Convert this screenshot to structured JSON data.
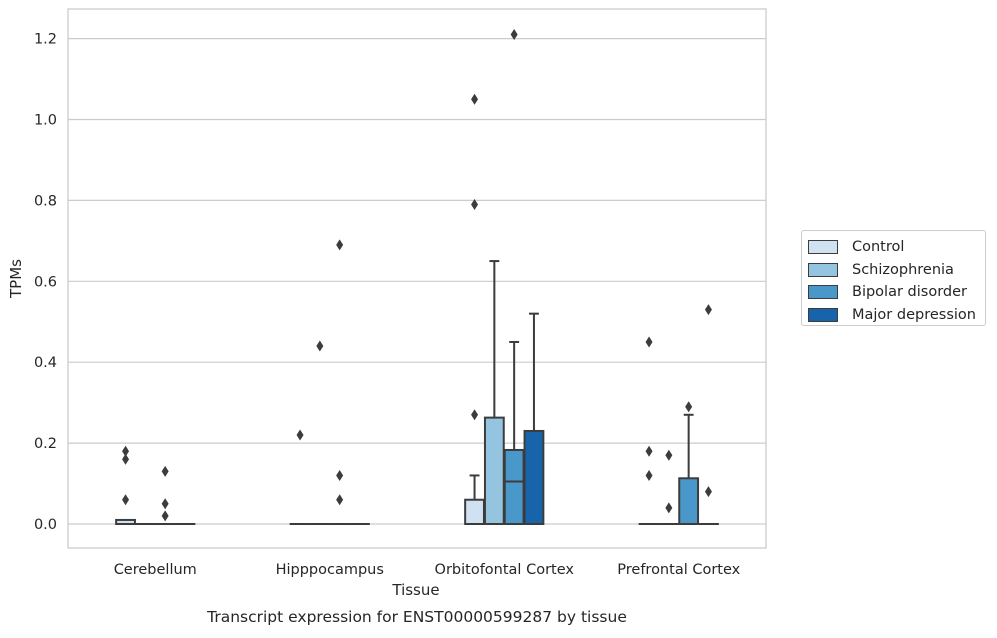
{
  "chart_data": {
    "type": "boxplot",
    "title": "Transcript expression for ENST00000599287 by tissue",
    "xlabel": "Tissue",
    "ylabel": "TPMs",
    "ylim": [
      -0.06,
      1.27
    ],
    "yticks": [
      "0.0",
      "0.2",
      "0.4",
      "0.6",
      "0.8",
      "1.0",
      "1.2"
    ],
    "grid": "horizontal",
    "legend_position": "right",
    "categories": [
      "Cerebellum",
      "Hipppocampus",
      "Orbitofontal Cortex",
      "Prefrontal Cortex"
    ],
    "series": [
      {
        "name": "Control",
        "color": "#d0e1f2",
        "boxes": [
          {
            "whisker_low": 0,
            "q1": 0,
            "median": 0,
            "q3": 0.01,
            "whisker_high": 0.01,
            "outliers": [
              0.18,
              0.16,
              0.06
            ]
          },
          {
            "whisker_low": 0,
            "q1": 0,
            "median": 0,
            "q3": 0,
            "whisker_high": 0,
            "outliers": [
              0.22
            ]
          },
          {
            "whisker_low": 0,
            "q1": 0,
            "median": 0,
            "q3": 0.06,
            "whisker_high": 0.12,
            "outliers": [
              1.05,
              0.79,
              0.27
            ]
          },
          {
            "whisker_low": 0,
            "q1": 0,
            "median": 0,
            "q3": 0,
            "whisker_high": 0,
            "outliers": [
              0.45,
              0.18,
              0.12
            ]
          }
        ]
      },
      {
        "name": "Schizophrenia",
        "color": "#94c4df",
        "boxes": [
          {
            "whisker_low": 0,
            "q1": 0,
            "median": 0,
            "q3": 0,
            "whisker_high": 0,
            "outliers": []
          },
          {
            "whisker_low": 0,
            "q1": 0,
            "median": 0,
            "q3": 0,
            "whisker_high": 0,
            "outliers": [
              0.44
            ]
          },
          {
            "whisker_low": 0,
            "q1": 0,
            "median": 0,
            "q3": 0.263,
            "whisker_high": 0.65,
            "outliers": []
          },
          {
            "whisker_low": 0,
            "q1": 0,
            "median": 0,
            "q3": 0,
            "whisker_high": 0,
            "outliers": [
              0.17,
              0.04
            ]
          }
        ]
      },
      {
        "name": "Bipolar disorder",
        "color": "#4a98c9",
        "boxes": [
          {
            "whisker_low": 0,
            "q1": 0,
            "median": 0,
            "q3": 0,
            "whisker_high": 0,
            "outliers": [
              0.13,
              0.05,
              0.02
            ]
          },
          {
            "whisker_low": 0,
            "q1": 0,
            "median": 0,
            "q3": 0,
            "whisker_high": 0,
            "outliers": [
              0.69,
              0.12,
              0.06
            ]
          },
          {
            "whisker_low": 0,
            "q1": 0,
            "median": 0.105,
            "q3": 0.183,
            "whisker_high": 0.45,
            "outliers": [
              1.21
            ]
          },
          {
            "whisker_low": 0,
            "q1": 0,
            "median": 0,
            "q3": 0.113,
            "whisker_high": 0.27,
            "outliers": [
              0.29
            ]
          }
        ]
      },
      {
        "name": "Major depression",
        "color": "#1764ab",
        "boxes": [
          {
            "whisker_low": 0,
            "q1": 0,
            "median": 0,
            "q3": 0,
            "whisker_high": 0,
            "outliers": []
          },
          {
            "whisker_low": 0,
            "q1": 0,
            "median": 0,
            "q3": 0,
            "whisker_high": 0,
            "outliers": []
          },
          {
            "whisker_low": 0,
            "q1": 0,
            "median": 0,
            "q3": 0.23,
            "whisker_high": 0.52,
            "outliers": []
          },
          {
            "whisker_low": 0,
            "q1": 0,
            "median": 0,
            "q3": 0,
            "whisker_high": 0,
            "outliers": [
              0.53,
              0.08
            ]
          }
        ]
      }
    ]
  }
}
